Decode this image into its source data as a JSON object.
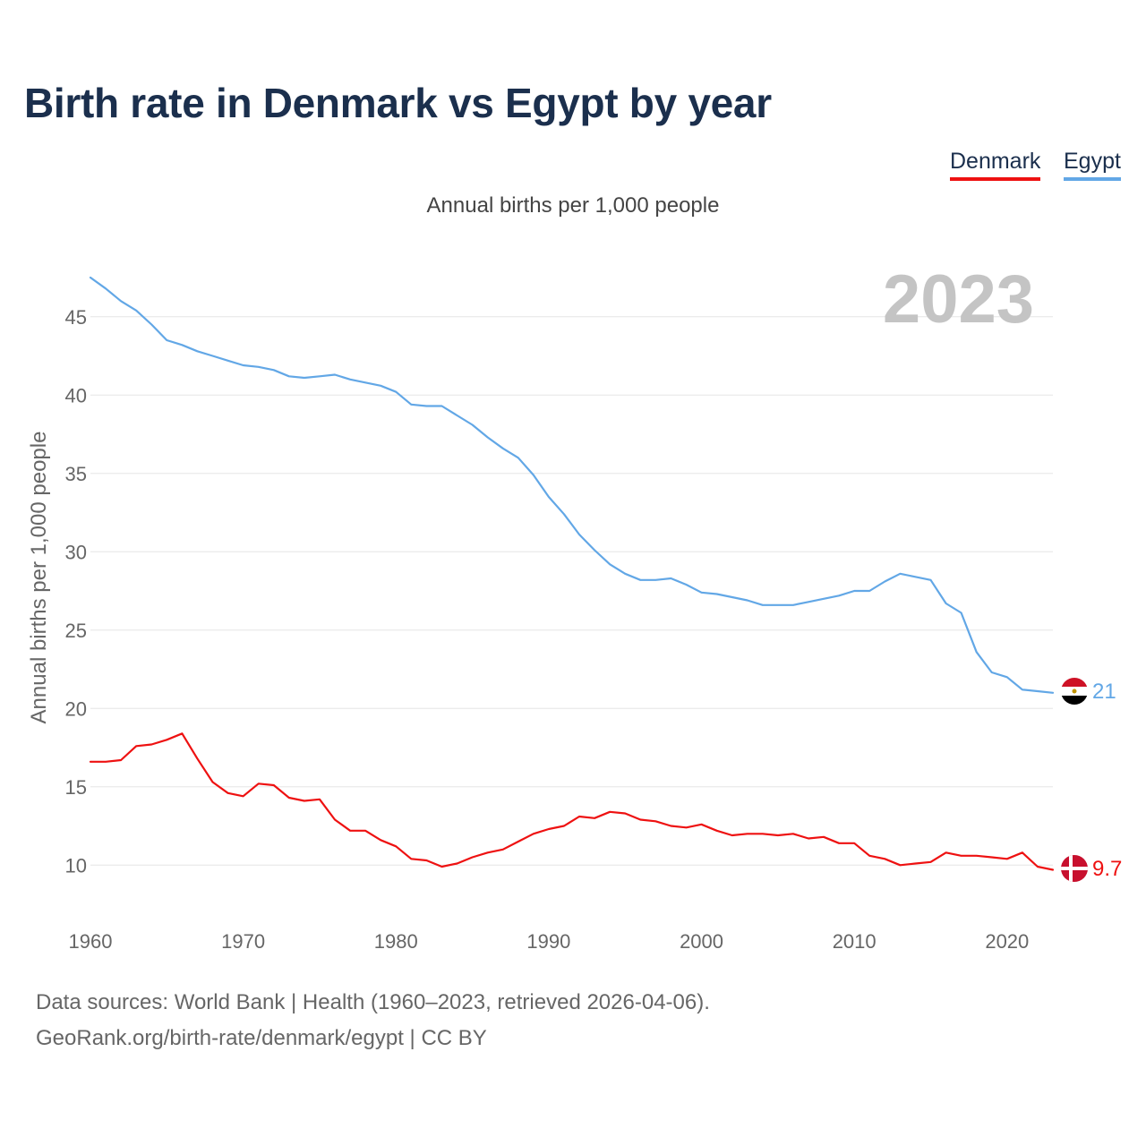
{
  "title": "Birth rate in Denmark vs Egypt by year",
  "subtitle": "Annual births per 1,000 people",
  "legend": [
    {
      "label": "Denmark",
      "color": "#ee1111"
    },
    {
      "label": "Egypt",
      "color": "#62a7e6"
    }
  ],
  "year_label": "2023",
  "footer": {
    "line1": "Data sources: World Bank | Health (1960–2023, retrieved 2026-04-06).",
    "line2": "GeoRank.org/birth-rate/denmark/egypt | CC BY"
  },
  "chart_data": {
    "type": "line",
    "title": "Birth rate in Denmark vs Egypt by year",
    "xlabel": "",
    "ylabel": "Annual births per 1,000 people",
    "xlim": [
      1960,
      2023
    ],
    "ylim": [
      7.5,
      47.5
    ],
    "xticks": [
      1960,
      1970,
      1980,
      1990,
      2000,
      2010,
      2020
    ],
    "yticks": [
      10,
      15,
      20,
      25,
      30,
      35,
      40,
      45
    ],
    "grid": true,
    "legend_position": "top-right",
    "series": [
      {
        "name": "Denmark",
        "color": "#ee1111",
        "end_label": "9.7",
        "x": [
          1960,
          1961,
          1962,
          1963,
          1964,
          1965,
          1966,
          1967,
          1968,
          1969,
          1970,
          1971,
          1972,
          1973,
          1974,
          1975,
          1976,
          1977,
          1978,
          1979,
          1980,
          1981,
          1982,
          1983,
          1984,
          1985,
          1986,
          1987,
          1988,
          1989,
          1990,
          1991,
          1992,
          1993,
          1994,
          1995,
          1996,
          1997,
          1998,
          1999,
          2000,
          2001,
          2002,
          2003,
          2004,
          2005,
          2006,
          2007,
          2008,
          2009,
          2010,
          2011,
          2012,
          2013,
          2014,
          2015,
          2016,
          2017,
          2018,
          2019,
          2020,
          2021,
          2022,
          2023
        ],
        "values": [
          16.6,
          16.6,
          16.7,
          17.6,
          17.7,
          18.0,
          18.4,
          16.8,
          15.3,
          14.6,
          14.4,
          15.2,
          15.1,
          14.3,
          14.1,
          14.2,
          12.9,
          12.2,
          12.2,
          11.6,
          11.2,
          10.4,
          10.3,
          9.9,
          10.1,
          10.5,
          10.8,
          11.0,
          11.5,
          12.0,
          12.3,
          12.5,
          13.1,
          13.0,
          13.4,
          13.3,
          12.9,
          12.8,
          12.5,
          12.4,
          12.6,
          12.2,
          11.9,
          12.0,
          12.0,
          11.9,
          12.0,
          11.7,
          11.8,
          11.4,
          11.4,
          10.6,
          10.4,
          10.0,
          10.1,
          10.2,
          10.8,
          10.6,
          10.6,
          10.5,
          10.4,
          10.8,
          9.9,
          9.7
        ]
      },
      {
        "name": "Egypt",
        "color": "#62a7e6",
        "end_label": "21",
        "x": [
          1960,
          1961,
          1962,
          1963,
          1964,
          1965,
          1966,
          1967,
          1968,
          1969,
          1970,
          1971,
          1972,
          1973,
          1974,
          1975,
          1976,
          1977,
          1978,
          1979,
          1980,
          1981,
          1982,
          1983,
          1984,
          1985,
          1986,
          1987,
          1988,
          1989,
          1990,
          1991,
          1992,
          1993,
          1994,
          1995,
          1996,
          1997,
          1998,
          1999,
          2000,
          2001,
          2002,
          2003,
          2004,
          2005,
          2006,
          2007,
          2008,
          2009,
          2010,
          2011,
          2012,
          2013,
          2014,
          2015,
          2016,
          2017,
          2018,
          2019,
          2020,
          2021,
          2022,
          2023
        ],
        "values": [
          47.5,
          46.8,
          46.0,
          45.4,
          44.5,
          43.5,
          43.2,
          42.8,
          42.5,
          42.2,
          41.9,
          41.8,
          41.6,
          41.2,
          41.1,
          41.2,
          41.3,
          41.0,
          40.8,
          40.6,
          40.2,
          39.4,
          39.3,
          39.3,
          38.7,
          38.1,
          37.3,
          36.6,
          36.0,
          34.9,
          33.5,
          32.4,
          31.1,
          30.1,
          29.2,
          28.6,
          28.2,
          28.2,
          28.3,
          27.9,
          27.4,
          27.3,
          27.1,
          26.9,
          26.6,
          26.6,
          26.6,
          26.8,
          27.0,
          27.2,
          27.5,
          27.5,
          28.1,
          28.6,
          28.4,
          28.2,
          26.7,
          26.1,
          23.6,
          22.3,
          22.0,
          21.2,
          21.1,
          21.0
        ]
      }
    ]
  }
}
